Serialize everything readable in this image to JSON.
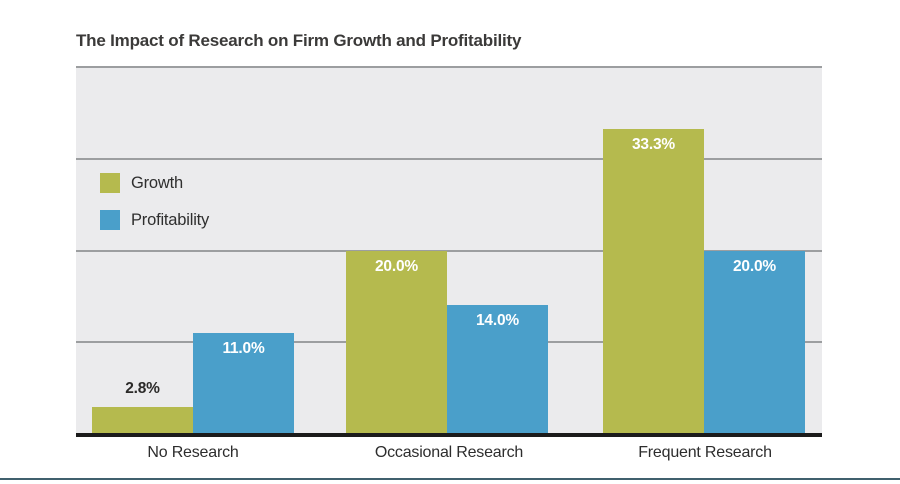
{
  "title": "The Impact of Research on Firm Growth and Profitability",
  "chart_data": {
    "type": "bar",
    "title": "The Impact of Research on Firm Growth and Profitability",
    "categories": [
      "No Research",
      "Occasional Research",
      "Frequent Research"
    ],
    "series": [
      {
        "name": "Growth",
        "color": "#b5ba4e",
        "values": [
          2.8,
          20.0,
          33.3
        ],
        "labels": [
          "2.8%",
          "20.0%",
          "33.3%"
        ]
      },
      {
        "name": "Profitability",
        "color": "#4a9fca",
        "values": [
          11.0,
          14.0,
          20.0
        ],
        "labels": [
          "11.0%",
          "14.0%",
          "20.0%"
        ]
      }
    ],
    "ylim": [
      0,
      40
    ],
    "gridlines": [
      10,
      20,
      30
    ],
    "grid": true,
    "legend_position": "inside-upper-left",
    "xlabel": "",
    "ylabel": ""
  },
  "colors": {
    "growth": "#b5ba4e",
    "profitability": "#4a9fca",
    "plot_background": "#ebebed",
    "gridline": "#9c9ea0",
    "axis": "#1b1b1b",
    "title_text": "#3b3a39",
    "category_text": "#2d2d2d",
    "value_label_light": "#ffffff",
    "value_label_dark": "#2b2a29",
    "bottom_rule": "#40606d"
  }
}
